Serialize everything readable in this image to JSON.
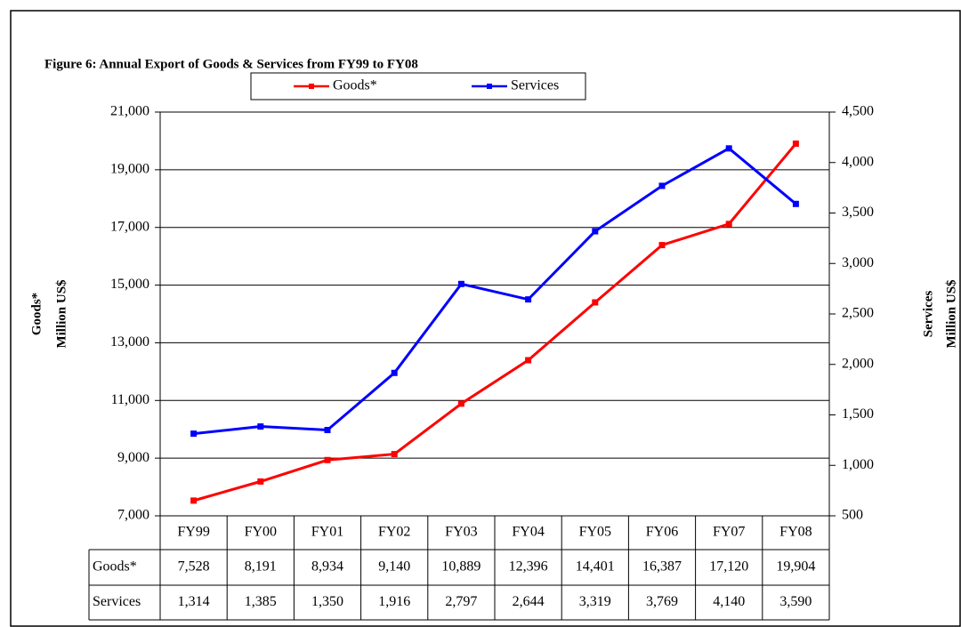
{
  "chart_data": {
    "type": "line",
    "title": "Figure 6: Annual Export of Goods & Services from FY99 to FY08",
    "y_label": [
      "Goods*",
      "Million US$"
    ],
    "y2_label": [
      "Services",
      "Million US$"
    ],
    "categories": [
      "FY99",
      "FY00",
      "FY01",
      "FY02",
      "FY03",
      "FY04",
      "FY05",
      "FY06",
      "FY07",
      "FY08"
    ],
    "series": [
      {
        "name": "Goods*",
        "color": "#ff0000",
        "axis": "y",
        "values": [
          7528,
          8191,
          8934,
          9140,
          10889,
          12396,
          14401,
          16387,
          17120,
          19904
        ],
        "value_labels": [
          "7,528",
          "8,191",
          "8,934",
          "9,140",
          "10,889",
          "12,396",
          "14,401",
          "16,387",
          "17,120",
          "19,904"
        ]
      },
      {
        "name": "Services",
        "color": "#0000ff",
        "axis": "y2",
        "values": [
          1314,
          1385,
          1350,
          1916,
          2797,
          2644,
          3319,
          3769,
          4140,
          3590
        ],
        "value_labels": [
          "1,314",
          "1,385",
          "1,350",
          "1,916",
          "2,797",
          "2,644",
          "3,319",
          "3,769",
          "4,140",
          "3,590"
        ]
      }
    ],
    "ylim": [
      7000,
      21000
    ],
    "yticks": [
      {
        "value": 7000,
        "label": "7,000"
      },
      {
        "value": 9000,
        "label": "9,000"
      },
      {
        "value": 11000,
        "label": "11,000"
      },
      {
        "value": 13000,
        "label": "13,000"
      },
      {
        "value": 15000,
        "label": "15,000"
      },
      {
        "value": 17000,
        "label": "17,000"
      },
      {
        "value": 19000,
        "label": "19,000"
      },
      {
        "value": 21000,
        "label": "21,000"
      }
    ],
    "y2lim": [
      500,
      4500
    ],
    "y2ticks": [
      500,
      {
        "value": 1000,
        "label": "1,000"
      },
      {
        "value": 1500,
        "label": "1,500"
      },
      {
        "value": 2000,
        "label": "2,000"
      },
      {
        "value": 2500,
        "label": "2,500"
      },
      {
        "value": 3000,
        "label": "3,000"
      },
      {
        "value": 3500,
        "label": "3,500"
      },
      {
        "value": 4000,
        "label": "4,000"
      },
      {
        "value": 4500,
        "label": "4,500"
      }
    ],
    "grid": true,
    "legend": "top"
  }
}
